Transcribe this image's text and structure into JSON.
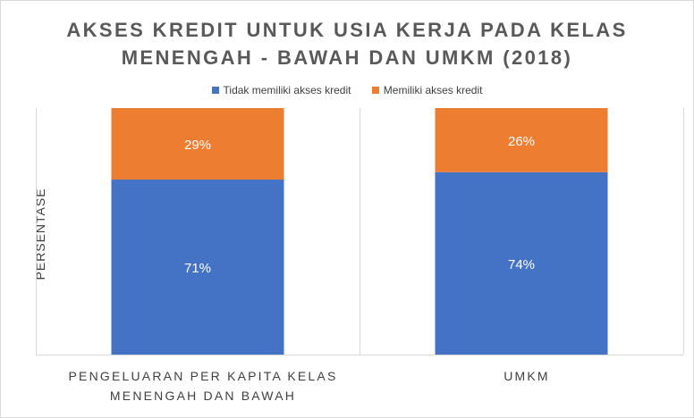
{
  "colors": {
    "no_credit": "#4472c4",
    "credit": "#ed7d31",
    "grid": "#d9d9d9",
    "data_label": "#ffffff"
  },
  "chart_data": {
    "type": "bar",
    "stacked": true,
    "percent_stacked": true,
    "title": "AKSES KREDIT UNTUK USIA KERJA PADA KELAS MENENGAH - BAWAH DAN UMKM (2018)",
    "title_lines": [
      "AKSES KREDIT UNTUK USIA KERJA PADA KELAS",
      "MENENGAH - BAWAH DAN UMKM (2018)"
    ],
    "xlabel": "",
    "ylabel": "PERSENTASE",
    "categories": [
      "PENGELUARAN PER KAPITA KELAS MENENGAH DAN BAWAH",
      "UMKM"
    ],
    "category_label_lines": [
      [
        "PENGELUARAN PER KAPITA KELAS",
        "MENENGAH DAN BAWAH"
      ],
      [
        "UMKM"
      ]
    ],
    "series": [
      {
        "name": "Tidak memiliki akses kredit",
        "values": [
          71,
          74
        ],
        "labels": [
          "71%",
          "74%"
        ],
        "color": "#4472c4"
      },
      {
        "name": "Memiliki akses kredit",
        "values": [
          29,
          26
        ],
        "labels": [
          "29%",
          "26%"
        ],
        "color": "#ed7d31"
      }
    ],
    "ylim": [
      0,
      100
    ],
    "grid": true,
    "legend_position": "top"
  }
}
